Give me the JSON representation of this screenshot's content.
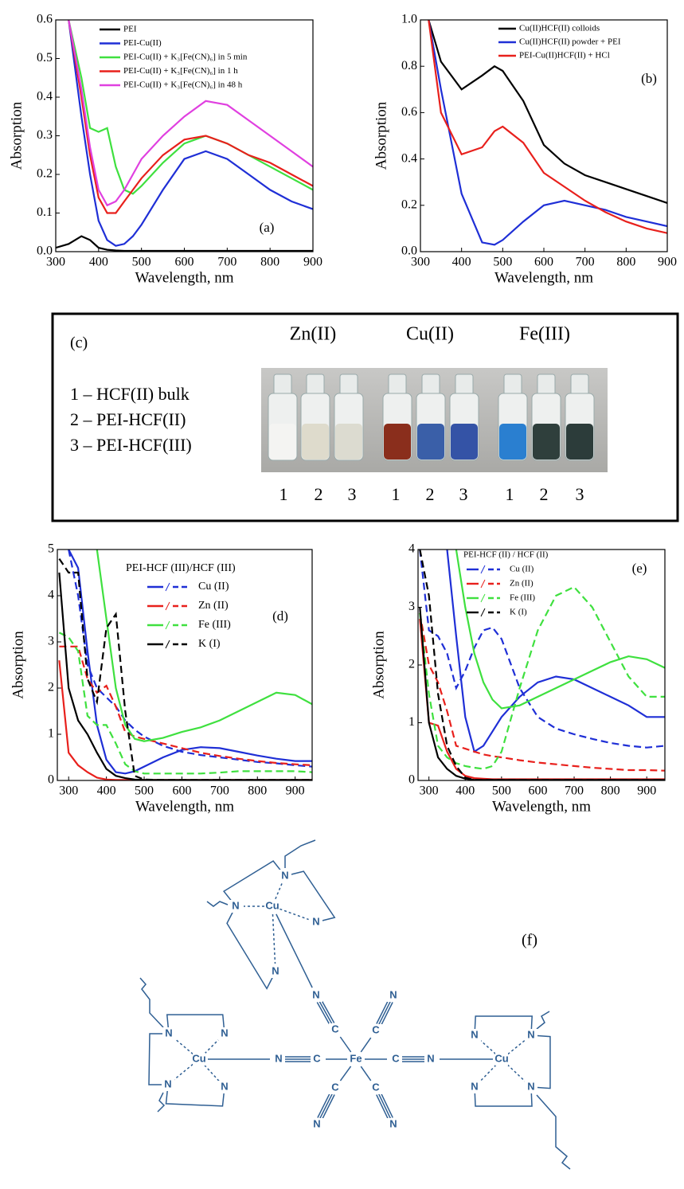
{
  "chart_data": [
    {
      "type": "line",
      "panel_label": "(a)",
      "xlabel": "Wavelength, nm",
      "ylabel": "Absorption",
      "xlim": [
        300,
        900
      ],
      "ylim": [
        0,
        0.6
      ],
      "xticks": [
        300,
        400,
        500,
        600,
        700,
        800,
        900
      ],
      "yticks": [
        {
          "value": 0,
          "label": "0.0"
        },
        {
          "value": 0.1,
          "label": "0.1"
        },
        {
          "value": 0.2,
          "label": "0.2"
        },
        {
          "value": 0.3,
          "label": "0.3"
        },
        {
          "value": 0.4,
          "label": "0.4"
        },
        {
          "value": 0.5,
          "label": "0.5"
        },
        {
          "value": 0.6,
          "label": "0.6"
        }
      ],
      "x": [
        300,
        330,
        360,
        380,
        400,
        420,
        440,
        460,
        480,
        500,
        550,
        600,
        650,
        700,
        750,
        800,
        850,
        900
      ],
      "series": [
        {
          "name": "PEI",
          "color": "#000000",
          "values": [
            0.01,
            0.02,
            0.04,
            0.03,
            0.01,
            0.005,
            0.003,
            0.002,
            0.002,
            0.002,
            0.002,
            0.002,
            0.002,
            0.002,
            0.002,
            0.002,
            0.002,
            0.002
          ]
        },
        {
          "name": "PEI-Cu(II)",
          "color": "#1f2fd6",
          "values": [
            null,
            0.6,
            0.35,
            0.2,
            0.08,
            0.03,
            0.015,
            0.02,
            0.04,
            0.07,
            0.16,
            0.24,
            0.26,
            0.24,
            0.2,
            0.16,
            0.13,
            0.11
          ]
        },
        {
          "name": "PEI-Cu(II) + K₃[Fe(CN)₆] in 5 min",
          "color": "#3fe03f",
          "values": [
            null,
            0.6,
            0.45,
            0.32,
            0.31,
            0.32,
            0.22,
            0.16,
            0.15,
            0.17,
            0.23,
            0.28,
            0.3,
            0.28,
            0.25,
            0.22,
            0.19,
            0.16
          ]
        },
        {
          "name": "PEI-Cu(II) + K₃[Fe(CN)₆] in 1 h",
          "color": "#e8201c",
          "values": [
            null,
            0.6,
            0.4,
            0.25,
            0.14,
            0.1,
            0.1,
            0.13,
            0.16,
            0.19,
            0.25,
            0.29,
            0.3,
            0.28,
            0.25,
            0.23,
            0.2,
            0.17
          ]
        },
        {
          "name": "PEI-Cu(II) + K₃[Fe(CN)₆] in 48 h",
          "color": "#e040e0",
          "values": [
            null,
            0.6,
            0.42,
            0.27,
            0.16,
            0.12,
            0.13,
            0.16,
            0.2,
            0.24,
            0.3,
            0.35,
            0.39,
            0.38,
            0.34,
            0.3,
            0.26,
            0.22
          ]
        }
      ]
    },
    {
      "type": "line",
      "panel_label": "(b)",
      "xlabel": "Wavelength, nm",
      "ylabel": "Absorption",
      "xlim": [
        300,
        900
      ],
      "ylim": [
        0,
        1
      ],
      "xticks": [
        300,
        400,
        500,
        600,
        700,
        800,
        900
      ],
      "yticks": [
        {
          "value": 0,
          "label": "0.0"
        },
        {
          "value": 0.2,
          "label": "0.2"
        },
        {
          "value": 0.4,
          "label": "0.4"
        },
        {
          "value": 0.6,
          "label": "0.6"
        },
        {
          "value": 0.8,
          "label": "0.8"
        },
        {
          "value": 1,
          "label": "1.0"
        }
      ],
      "x": [
        320,
        350,
        400,
        450,
        480,
        500,
        550,
        600,
        650,
        700,
        750,
        800,
        850,
        900
      ],
      "series": [
        {
          "name": "Cu(II)HCF(II) colloids",
          "color": "#000000",
          "values": [
            1.0,
            0.82,
            0.7,
            0.76,
            0.8,
            0.78,
            0.65,
            0.46,
            0.38,
            0.33,
            0.3,
            0.27,
            0.24,
            0.21
          ]
        },
        {
          "name": "Cu(II)HCF(II) powder + PEI",
          "color": "#1f2fd6",
          "values": [
            1.0,
            0.7,
            0.25,
            0.04,
            0.03,
            0.05,
            0.13,
            0.2,
            0.22,
            0.2,
            0.18,
            0.15,
            0.13,
            0.11
          ]
        },
        {
          "name": "PEI-Cu(II)HCF(II) + HCl",
          "color": "#e8201c",
          "values": [
            1.0,
            0.6,
            0.42,
            0.45,
            0.52,
            0.54,
            0.47,
            0.34,
            0.28,
            0.22,
            0.17,
            0.13,
            0.1,
            0.08
          ]
        }
      ]
    },
    {
      "type": "line",
      "panel_label": "(d)",
      "xlabel": "Wavelength, nm",
      "ylabel": "Absorption",
      "legend_title": "PEI-HCF (III)/HCF (III)",
      "xlim": [
        270,
        945
      ],
      "ylim": [
        0,
        5
      ],
      "xticks": [
        300,
        400,
        500,
        600,
        700,
        800,
        900
      ],
      "yticks": [
        0,
        1,
        2,
        3,
        4,
        5
      ],
      "x": [
        275,
        300,
        325,
        350,
        375,
        400,
        425,
        450,
        475,
        500,
        550,
        600,
        650,
        700,
        750,
        800,
        850,
        900,
        945
      ],
      "series": [
        {
          "name": "Cu (II)",
          "color": "#1f2fd6",
          "values": [
            null,
            5,
            4.6,
            2.8,
            1.2,
            0.45,
            0.18,
            0.15,
            0.2,
            0.3,
            0.5,
            0.66,
            0.72,
            0.7,
            0.62,
            0.54,
            0.47,
            0.42,
            0.42
          ],
          "dashed_values": [
            null,
            5,
            4,
            2.5,
            2.0,
            1.8,
            1.6,
            1.3,
            1.1,
            0.95,
            0.75,
            0.62,
            0.55,
            0.5,
            0.45,
            0.4,
            0.37,
            0.33,
            0.3
          ]
        },
        {
          "name": "Zn (II)",
          "color": "#e8201c",
          "values": [
            2.6,
            0.6,
            0.33,
            0.18,
            0.06,
            0.02,
            0.01,
            0.01,
            0.01,
            0.01,
            0.01,
            0.01,
            0.01,
            0.01,
            0.01,
            0.01,
            0.01,
            0.01,
            0.01
          ],
          "dashed_values": [
            2.9,
            2.9,
            2.9,
            2.2,
            1.9,
            2.05,
            1.6,
            1.05,
            0.95,
            0.9,
            0.8,
            0.7,
            0.6,
            0.53,
            0.47,
            0.42,
            0.38,
            0.35,
            0.33
          ]
        },
        {
          "name": "Fe (III)",
          "color": "#3fe03f",
          "values": [
            null,
            null,
            null,
            null,
            5,
            3.5,
            2,
            1.2,
            0.9,
            0.85,
            0.92,
            1.05,
            1.15,
            1.3,
            1.5,
            1.7,
            1.9,
            1.85,
            1.65
          ],
          "dashed_values": [
            3.2,
            3.1,
            2.8,
            1.4,
            1.2,
            1.2,
            0.8,
            0.35,
            0.2,
            0.15,
            0.15,
            0.15,
            0.15,
            0.17,
            0.2,
            0.2,
            0.2,
            0.2,
            0.18
          ]
        },
        {
          "name": "K  (I)",
          "color": "#000000",
          "values": [
            4.5,
            2.0,
            1.3,
            1.0,
            0.6,
            0.25,
            0.1,
            0.05,
            0.02,
            0.01,
            0.01,
            0.01,
            0.01,
            0.01,
            0.01,
            0.01,
            0.01,
            0.01,
            0.01
          ],
          "dashed_values": [
            4.8,
            4.5,
            4.5,
            2.2,
            1.7,
            3.3,
            3.6,
            1.5,
            0.1,
            0.02,
            0.01,
            0.01,
            0.01,
            0.01,
            0.01,
            0.01,
            0.01,
            0.01,
            0.01
          ]
        }
      ]
    },
    {
      "type": "line",
      "panel_label": "(e)",
      "xlabel": "Wavelength, nm",
      "ylabel": "Absorption",
      "legend_title": "PEI-HCF (II) / HCF (II)",
      "xlim": [
        270,
        950
      ],
      "ylim": [
        0,
        4
      ],
      "xticks": [
        300,
        400,
        500,
        600,
        700,
        800,
        900
      ],
      "yticks": [
        0,
        1,
        2,
        3,
        4
      ],
      "x": [
        275,
        300,
        325,
        350,
        375,
        400,
        425,
        450,
        475,
        500,
        550,
        600,
        650,
        700,
        750,
        800,
        850,
        900,
        950
      ],
      "series": [
        {
          "name": "Cu (II)",
          "color": "#1f2fd6",
          "values": [
            null,
            null,
            null,
            4,
            2.5,
            1.1,
            0.5,
            0.6,
            0.85,
            1.1,
            1.45,
            1.7,
            1.8,
            1.75,
            1.6,
            1.45,
            1.3,
            1.1,
            1.1
          ],
          "dashed_values": [
            4,
            2.6,
            2.5,
            2.2,
            1.6,
            1.9,
            2.3,
            2.6,
            2.65,
            2.45,
            1.6,
            1.1,
            0.9,
            0.8,
            0.72,
            0.65,
            0.6,
            0.57,
            0.6
          ]
        },
        {
          "name": "Zn (II)",
          "color": "#e8201c",
          "values": [
            2.8,
            1.0,
            0.95,
            0.5,
            0.2,
            0.08,
            0.04,
            0.03,
            0.02,
            0.02,
            0.02,
            0.02,
            0.02,
            0.02,
            0.02,
            0.02,
            0.02,
            0.02,
            0.02
          ],
          "dashed_values": [
            2.9,
            2.0,
            1.7,
            1.2,
            0.6,
            0.55,
            0.5,
            0.45,
            0.42,
            0.4,
            0.35,
            0.31,
            0.28,
            0.25,
            0.22,
            0.2,
            0.18,
            0.18,
            0.17
          ]
        },
        {
          "name": "Fe (III)",
          "color": "#3fe03f",
          "values": [
            null,
            null,
            null,
            null,
            4,
            3,
            2.2,
            1.7,
            1.4,
            1.25,
            1.3,
            1.45,
            1.6,
            1.75,
            1.9,
            2.05,
            2.15,
            2.1,
            1.95
          ],
          "dashed_values": [
            2.9,
            1.5,
            0.6,
            0.4,
            0.3,
            0.25,
            0.22,
            0.2,
            0.25,
            0.5,
            1.6,
            2.6,
            3.2,
            3.35,
            3.0,
            2.4,
            1.8,
            1.45,
            1.45
          ]
        },
        {
          "name": "K (I)",
          "color": "#000000",
          "values": [
            3.0,
            1.0,
            0.4,
            0.2,
            0.08,
            0.03,
            0.01,
            0.01,
            0.01,
            0.01,
            0.01,
            0.01,
            0.01,
            0.01,
            0.01,
            0.01,
            0.01,
            0.01,
            0.01
          ],
          "dashed_values": [
            4,
            3.2,
            1.5,
            0.6,
            0.25,
            0.05,
            0.01,
            0.01,
            0.01,
            0.01,
            0.01,
            0.01,
            0.01,
            0.01,
            0.01,
            0.01,
            0.01,
            0.01,
            0.01
          ]
        }
      ]
    }
  ],
  "photo_panel": {
    "label": "(c)",
    "key": [
      "1 – HCF(II) bulk",
      "2 – PEI-HCF(II)",
      "3 – PEI-HCF(III)"
    ],
    "groups": [
      {
        "name": "Zn(II)",
        "samples": [
          "1",
          "2",
          "3"
        ]
      },
      {
        "name": "Cu(II)",
        "samples": [
          "1",
          "2",
          "3"
        ]
      },
      {
        "name": "Fe(III)",
        "samples": [
          "1",
          "2",
          "3"
        ]
      }
    ]
  },
  "structure": {
    "label": "(f)",
    "atoms": [
      "N",
      "N",
      "Cu",
      "N",
      "N",
      "N",
      "C",
      "Fe",
      "C",
      "N",
      "Cu",
      "N",
      "N",
      "N",
      "N",
      "C",
      "N",
      "Cu",
      "N",
      "N",
      "N",
      "N",
      "C",
      "N",
      "C",
      "N",
      "C",
      "N"
    ]
  }
}
